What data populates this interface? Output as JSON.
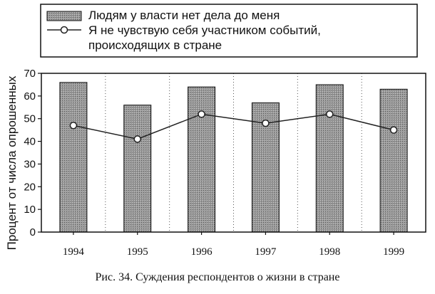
{
  "chart_data": {
    "type": "bar",
    "categories": [
      "1994",
      "1995",
      "1996",
      "1997",
      "1998",
      "1999"
    ],
    "series": [
      {
        "name": "Людям у власти нет дела до меня",
        "kind": "bar",
        "values": [
          66,
          56,
          64,
          57,
          65,
          63
        ]
      },
      {
        "name_lines": [
          "Я не чувствую себя участником событий,",
          "происходящих  в стране"
        ],
        "kind": "line",
        "values": [
          47,
          41,
          52,
          48,
          52,
          45
        ]
      }
    ],
    "ylabel": "Процент от числа опрошенных",
    "ylim": [
      0,
      70
    ],
    "yticks": [
      0,
      10,
      20,
      30,
      40,
      50,
      60,
      70
    ],
    "grid": "vertical dotted",
    "legend_position": "top",
    "caption": "Рис. 34. Суждения респондентов о жизни в стране"
  },
  "colors": {
    "bar_fill": "#8f8f8f",
    "line": "#222222",
    "marker_fill": "#ffffff",
    "axis": "#111111"
  }
}
